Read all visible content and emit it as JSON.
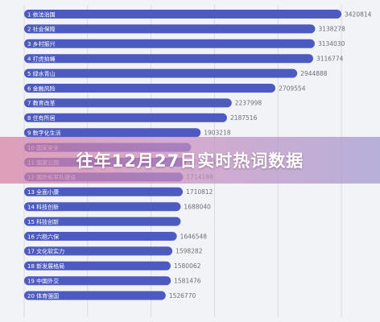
{
  "banner": {
    "title": "往年12月27日实时热词数据"
  },
  "colors": {
    "bar": "#4d5bc0",
    "banner_start": "#d67ea2",
    "banner_end": "#a096cd"
  },
  "chart_data": {
    "type": "bar",
    "orientation": "horizontal",
    "title": "",
    "xlabel": "",
    "ylabel": "",
    "xlim": [
      0,
      3420814
    ],
    "grid": true,
    "categories": [
      "1 依法治国",
      "2 社会保障",
      "3 乡村振兴",
      "4 打虎拍蝇",
      "5 绿水青山",
      "6 金融风险",
      "7 教育改革",
      "8 住有所居",
      "9 数字化生活",
      "10 国家安全",
      "11 国家公园",
      "12 国防和军队建设",
      "13 全面小康",
      "14 科技创新",
      "15 科技创新",
      "16 六稳六保",
      "17 文化软实力",
      "18 新发展格局",
      "19 中国外交",
      "20 体育强国"
    ],
    "values": [
      3420814,
      3138278,
      3134030,
      3116774,
      2944888,
      2709554,
      2237998,
      2187516,
      1903218,
      1800000,
      1743784,
      1714198,
      1710812,
      1688040,
      1688040,
      1646548,
      1598282,
      1580062,
      1581476,
      1526770
    ],
    "value_labels": [
      "3420814",
      "3138278",
      "3134030",
      "3116774",
      "2944888",
      "2709554",
      "2237998",
      "2187516",
      "1903218",
      "",
      "1743784",
      "1714198",
      "1710812",
      "1688040",
      "",
      "1646548",
      "1598282",
      "1580062",
      "1581476",
      "1526770"
    ]
  }
}
